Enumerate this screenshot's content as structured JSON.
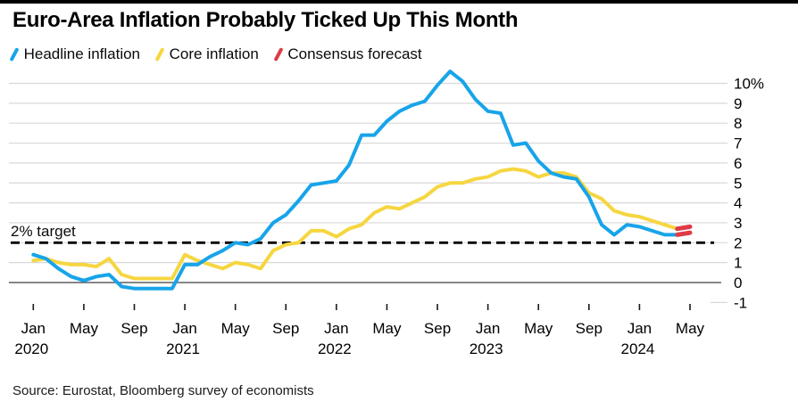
{
  "header": {
    "title": "Euro-Area Inflation Probably Ticked Up This Month"
  },
  "legend": [
    {
      "label": "Headline inflation",
      "color": "#18a4e9"
    },
    {
      "label": "Core inflation",
      "color": "#f6d640"
    },
    {
      "label": "Consensus forecast",
      "color": "#de3b46"
    }
  ],
  "annotations": {
    "target_label": "2% target"
  },
  "source": "Source: Eurostat, Bloomberg survey of economists",
  "chart_data": {
    "type": "line",
    "title": "Euro-Area Inflation Probably Ticked Up This Month",
    "unit": "%",
    "x_start": "Jan 2020",
    "x_end": "May 2024",
    "x_frequency": "monthly",
    "grid": "horizontal",
    "legend_position": "top-left",
    "y_axis": {
      "side": "right",
      "ylim": [
        -1,
        10.6
      ],
      "tick_values": [
        10,
        9,
        8,
        7,
        6,
        5,
        4,
        3,
        2,
        1,
        0,
        -1
      ],
      "tick_labels": [
        "10%",
        "9",
        "8",
        "7",
        "6",
        "5",
        "4",
        "3",
        "2",
        "1",
        "0",
        "-1"
      ]
    },
    "x_ticks": [
      {
        "i": 0,
        "month": "Jan",
        "year": "2020"
      },
      {
        "i": 4,
        "month": "May"
      },
      {
        "i": 8,
        "month": "Sep"
      },
      {
        "i": 12,
        "month": "Jan",
        "year": "2021"
      },
      {
        "i": 16,
        "month": "May"
      },
      {
        "i": 20,
        "month": "Sep"
      },
      {
        "i": 24,
        "month": "Jan",
        "year": "2022"
      },
      {
        "i": 28,
        "month": "May"
      },
      {
        "i": 32,
        "month": "Sep"
      },
      {
        "i": 36,
        "month": "Jan",
        "year": "2023"
      },
      {
        "i": 40,
        "month": "May"
      },
      {
        "i": 44,
        "month": "Sep"
      },
      {
        "i": 48,
        "month": "Jan",
        "year": "2024"
      },
      {
        "i": 52,
        "month": "May"
      }
    ],
    "target_line": {
      "value": 2,
      "label": "2% target",
      "style": "dashed",
      "color": "#000000"
    },
    "series": [
      {
        "name": "Core inflation",
        "color": "#f6d640",
        "start_index": 0,
        "values": [
          1.1,
          1.2,
          1.0,
          0.9,
          0.9,
          0.8,
          1.2,
          0.4,
          0.2,
          0.2,
          0.2,
          0.2,
          1.4,
          1.1,
          0.9,
          0.7,
          1.0,
          0.9,
          0.7,
          1.6,
          1.9,
          2.0,
          2.6,
          2.6,
          2.3,
          2.7,
          2.9,
          3.5,
          3.8,
          3.7,
          4.0,
          4.3,
          4.8,
          5.0,
          5.0,
          5.2,
          5.3,
          5.6,
          5.7,
          5.6,
          5.3,
          5.5,
          5.5,
          5.3,
          4.5,
          4.2,
          3.6,
          3.4,
          3.3,
          3.1,
          2.9,
          2.7
        ]
      },
      {
        "name": "Headline inflation",
        "color": "#18a4e9",
        "start_index": 0,
        "values": [
          1.4,
          1.2,
          0.7,
          0.3,
          0.1,
          0.3,
          0.4,
          -0.2,
          -0.3,
          -0.3,
          -0.3,
          -0.3,
          0.9,
          0.9,
          1.3,
          1.6,
          2.0,
          1.9,
          2.2,
          3.0,
          3.4,
          4.1,
          4.9,
          5.0,
          5.1,
          5.9,
          7.4,
          7.4,
          8.1,
          8.6,
          8.9,
          9.1,
          9.9,
          10.6,
          10.1,
          9.2,
          8.6,
          8.5,
          6.9,
          7.0,
          6.1,
          5.5,
          5.3,
          5.2,
          4.3,
          2.9,
          2.4,
          2.9,
          2.8,
          2.6,
          2.4,
          2.4
        ]
      },
      {
        "name": "Consensus forecast",
        "color": "#de3b46",
        "segments": [
          {
            "start_index": 51,
            "values": [
              2.7,
              2.8
            ]
          },
          {
            "start_index": 51,
            "values": [
              2.4,
              2.5
            ]
          }
        ]
      }
    ]
  },
  "style": {
    "gridline_color": "#d8d8d8",
    "zero_line_color": "#3d3d3d",
    "tick_color": "#1a1a1a",
    "axis_text_color": "#000000"
  }
}
